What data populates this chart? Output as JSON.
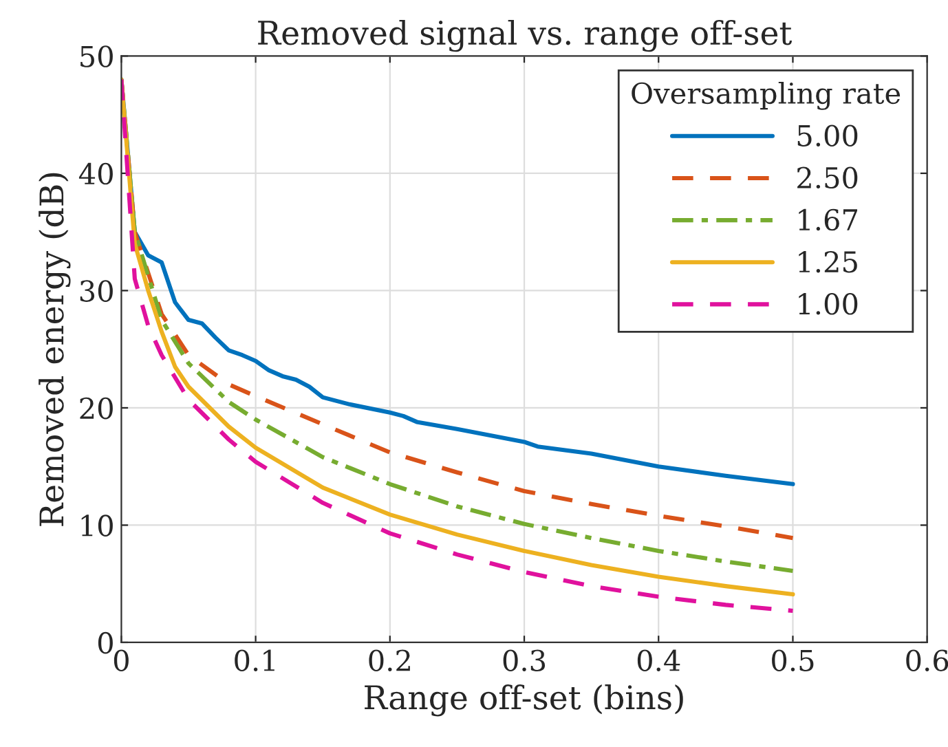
{
  "chart_data": {
    "type": "line",
    "title": "Removed signal vs. range off-set",
    "xlabel": "Range off-set (bins)",
    "ylabel": "Removed energy (dB)",
    "legend_title": "Oversampling rate",
    "xlim": [
      0,
      0.6
    ],
    "xticks": [
      0,
      0.1,
      0.2,
      0.3,
      0.4,
      0.5,
      0.6
    ],
    "ylim": [
      0,
      50
    ],
    "yticks": [
      0,
      10,
      20,
      30,
      40,
      50
    ],
    "grid": true,
    "legend": "top right",
    "series": [
      {
        "name": "5.00",
        "color": "#0072bd",
        "line_style": "solid",
        "x": [
          0,
          0.01,
          0.02,
          0.03,
          0.04,
          0.05,
          0.06,
          0.07,
          0.08,
          0.09,
          0.1,
          0.11,
          0.12,
          0.13,
          0.14,
          0.15,
          0.17,
          0.2,
          0.21,
          0.22,
          0.25,
          0.3,
          0.31,
          0.35,
          0.4,
          0.45,
          0.5
        ],
        "values": [
          48,
          35,
          33,
          32.4,
          29,
          27.5,
          27.2,
          26,
          24.9,
          24.5,
          24,
          23.2,
          22.7,
          22.4,
          21.8,
          20.9,
          20.3,
          19.6,
          19.3,
          18.8,
          18.2,
          17.1,
          16.7,
          16.1,
          15,
          14.2,
          13.5
        ]
      },
      {
        "name": "2.50",
        "color": "#d95319",
        "line_style": "dashed",
        "x": [
          0,
          0.01,
          0.03,
          0.05,
          0.08,
          0.1,
          0.15,
          0.2,
          0.25,
          0.3,
          0.35,
          0.4,
          0.45,
          0.5
        ],
        "values": [
          48,
          35,
          28,
          24.5,
          22,
          21,
          18.6,
          16.2,
          14.5,
          12.9,
          11.8,
          10.8,
          9.9,
          8.9
        ]
      },
      {
        "name": "1.67",
        "color": "#77ac30",
        "line_style": "dashdot",
        "x": [
          0,
          0.01,
          0.03,
          0.05,
          0.08,
          0.1,
          0.15,
          0.2,
          0.25,
          0.3,
          0.35,
          0.4,
          0.45,
          0.5
        ],
        "values": [
          48,
          35,
          27.5,
          23.8,
          20.5,
          19,
          15.8,
          13.5,
          11.6,
          10.1,
          8.9,
          7.8,
          6.9,
          6.1
        ]
      },
      {
        "name": "1.25",
        "color": "#edb120",
        "line_style": "solid",
        "x": [
          0,
          0.01,
          0.02,
          0.03,
          0.04,
          0.05,
          0.08,
          0.1,
          0.15,
          0.2,
          0.25,
          0.3,
          0.35,
          0.4,
          0.45,
          0.5
        ],
        "values": [
          48,
          34,
          30,
          26.5,
          23.5,
          21.8,
          18.4,
          16.6,
          13.2,
          10.9,
          9.2,
          7.8,
          6.6,
          5.6,
          4.8,
          4.1
        ]
      },
      {
        "name": "1.00",
        "color": "#e0119d",
        "line_style": "dashed",
        "x": [
          0,
          0.01,
          0.02,
          0.03,
          0.05,
          0.08,
          0.1,
          0.15,
          0.2,
          0.25,
          0.3,
          0.35,
          0.4,
          0.45,
          0.5
        ],
        "values": [
          48,
          31,
          27,
          24.5,
          20.7,
          17.3,
          15.4,
          11.9,
          9.3,
          7.5,
          6,
          4.8,
          3.9,
          3.2,
          2.7
        ]
      }
    ]
  }
}
